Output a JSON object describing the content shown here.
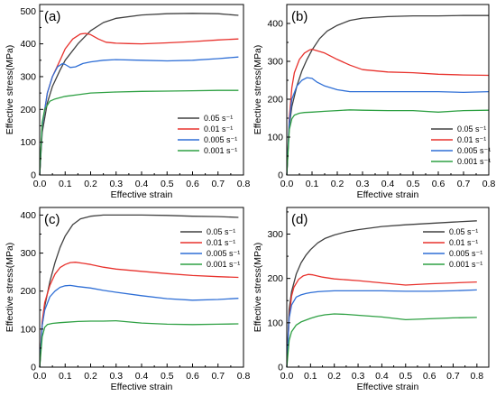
{
  "colors": {
    "s005": "#404040",
    "s001": "#e8322d",
    "s0005": "#2f6fd6",
    "s0001": "#2ea043"
  },
  "chart_data": [
    {
      "type": "line",
      "panel_label": "(a)",
      "xlabel": "Effective strain",
      "ylabel": "Effective stress(MPa)",
      "xlim": [
        0.0,
        0.8
      ],
      "ylim": [
        0,
        520
      ],
      "x_ticks": [
        "0.0",
        "0.1",
        "0.2",
        "0.3",
        "0.4",
        "0.5",
        "0.6",
        "0.7",
        "0.8"
      ],
      "y_ticks": [
        "0",
        "100",
        "200",
        "300",
        "400",
        "500"
      ],
      "legend_position": "bottom-right",
      "series": [
        {
          "name": "0.05 s⁻¹",
          "color_key": "s005",
          "x": [
            0,
            0.01,
            0.03,
            0.05,
            0.08,
            0.1,
            0.15,
            0.2,
            0.25,
            0.3,
            0.4,
            0.5,
            0.6,
            0.7,
            0.78
          ],
          "y": [
            0,
            130,
            220,
            270,
            320,
            350,
            400,
            440,
            465,
            478,
            488,
            492,
            493,
            492,
            487
          ]
        },
        {
          "name": "0.01 s⁻¹",
          "color_key": "s001",
          "x": [
            0,
            0.01,
            0.03,
            0.05,
            0.08,
            0.1,
            0.13,
            0.16,
            0.18,
            0.2,
            0.23,
            0.26,
            0.3,
            0.35,
            0.4,
            0.5,
            0.6,
            0.7,
            0.78
          ],
          "y": [
            0,
            150,
            250,
            300,
            350,
            385,
            415,
            430,
            432,
            428,
            415,
            405,
            402,
            401,
            400,
            403,
            407,
            412,
            415
          ]
        },
        {
          "name": "0.005 s⁻¹",
          "color_key": "s0005",
          "x": [
            0,
            0.01,
            0.03,
            0.05,
            0.07,
            0.09,
            0.1,
            0.12,
            0.14,
            0.17,
            0.2,
            0.25,
            0.3,
            0.4,
            0.5,
            0.6,
            0.7,
            0.78
          ],
          "y": [
            0,
            150,
            250,
            300,
            330,
            340,
            337,
            328,
            330,
            340,
            345,
            350,
            352,
            350,
            348,
            350,
            355,
            360
          ]
        },
        {
          "name": "0.001 s⁻¹",
          "color_key": "s0001",
          "x": [
            0,
            0.01,
            0.02,
            0.04,
            0.06,
            0.08,
            0.1,
            0.15,
            0.2,
            0.3,
            0.4,
            0.5,
            0.6,
            0.7,
            0.78
          ],
          "y": [
            0,
            160,
            200,
            225,
            232,
            236,
            240,
            245,
            250,
            253,
            255,
            256,
            257,
            258,
            258
          ]
        }
      ]
    },
    {
      "type": "line",
      "panel_label": "(b)",
      "xlabel": "Effective strain",
      "ylabel": "Effective stress(MPa)",
      "xlim": [
        0.0,
        0.8
      ],
      "ylim": [
        0,
        450
      ],
      "x_ticks": [
        "0.0",
        "0.1",
        "0.2",
        "0.3",
        "0.4",
        "0.5",
        "0.6",
        "0.7",
        "0.8"
      ],
      "y_ticks": [
        "0",
        "100",
        "200",
        "300",
        "400"
      ],
      "legend_position": "bottom-right",
      "series": [
        {
          "name": "0.05 s⁻¹",
          "color_key": "s005",
          "x": [
            0,
            0.01,
            0.02,
            0.04,
            0.06,
            0.08,
            0.1,
            0.13,
            0.16,
            0.2,
            0.25,
            0.3,
            0.4,
            0.5,
            0.6,
            0.7,
            0.8
          ],
          "y": [
            0,
            130,
            180,
            235,
            275,
            305,
            330,
            360,
            380,
            395,
            408,
            414,
            418,
            420,
            420,
            421,
            421
          ]
        },
        {
          "name": "0.01 s⁻¹",
          "color_key": "s001",
          "x": [
            0,
            0.01,
            0.02,
            0.03,
            0.05,
            0.07,
            0.09,
            0.1,
            0.12,
            0.15,
            0.2,
            0.25,
            0.3,
            0.4,
            0.5,
            0.6,
            0.7,
            0.8
          ],
          "y": [
            0,
            150,
            230,
            270,
            305,
            322,
            330,
            332,
            328,
            322,
            305,
            290,
            278,
            272,
            270,
            266,
            264,
            263
          ]
        },
        {
          "name": "0.005 s⁻¹",
          "color_key": "s0005",
          "x": [
            0,
            0.01,
            0.02,
            0.04,
            0.06,
            0.08,
            0.1,
            0.12,
            0.15,
            0.2,
            0.25,
            0.3,
            0.4,
            0.5,
            0.6,
            0.7,
            0.8
          ],
          "y": [
            0,
            140,
            200,
            235,
            250,
            257,
            255,
            245,
            235,
            225,
            220,
            220,
            220,
            220,
            220,
            218,
            220
          ]
        },
        {
          "name": "0.001 s⁻¹",
          "color_key": "s0001",
          "x": [
            0,
            0.01,
            0.02,
            0.03,
            0.05,
            0.07,
            0.1,
            0.15,
            0.2,
            0.25,
            0.3,
            0.4,
            0.5,
            0.6,
            0.7,
            0.8
          ],
          "y": [
            0,
            120,
            148,
            158,
            163,
            165,
            166,
            168,
            170,
            172,
            171,
            170,
            170,
            166,
            170,
            171
          ]
        }
      ]
    },
    {
      "type": "line",
      "panel_label": "(c)",
      "xlabel": "Effective strain",
      "ylabel": "Effective stress(MPa)",
      "xlim": [
        0.0,
        0.8
      ],
      "ylim": [
        0,
        420
      ],
      "x_ticks": [
        "0.0",
        "0.1",
        "0.2",
        "0.3",
        "0.4",
        "0.5",
        "0.6",
        "0.7",
        "0.8"
      ],
      "y_ticks": [
        "0",
        "100",
        "200",
        "300",
        "400"
      ],
      "legend_position": "bottom-right",
      "series": [
        {
          "name": "0.05 s⁻¹",
          "color_key": "s005",
          "x": [
            0,
            0.01,
            0.02,
            0.04,
            0.06,
            0.08,
            0.1,
            0.13,
            0.16,
            0.2,
            0.25,
            0.3,
            0.4,
            0.5,
            0.6,
            0.7,
            0.78
          ],
          "y": [
            0,
            110,
            160,
            225,
            275,
            315,
            345,
            375,
            390,
            397,
            400,
            400,
            400,
            399,
            397,
            396,
            394
          ]
        },
        {
          "name": "0.01 s⁻¹",
          "color_key": "s001",
          "x": [
            0,
            0.01,
            0.02,
            0.04,
            0.06,
            0.08,
            0.1,
            0.12,
            0.14,
            0.17,
            0.2,
            0.25,
            0.3,
            0.4,
            0.5,
            0.6,
            0.7,
            0.78
          ],
          "y": [
            0,
            120,
            170,
            215,
            245,
            262,
            270,
            275,
            276,
            273,
            270,
            263,
            258,
            252,
            246,
            241,
            238,
            236
          ]
        },
        {
          "name": "0.005 s⁻¹",
          "color_key": "s0005",
          "x": [
            0,
            0.01,
            0.02,
            0.04,
            0.06,
            0.08,
            0.1,
            0.12,
            0.15,
            0.2,
            0.25,
            0.3,
            0.4,
            0.5,
            0.6,
            0.7,
            0.78
          ],
          "y": [
            0,
            110,
            150,
            185,
            200,
            210,
            214,
            215,
            212,
            208,
            202,
            197,
            188,
            180,
            176,
            178,
            181
          ]
        },
        {
          "name": "0.001 s⁻¹",
          "color_key": "s0001",
          "x": [
            0,
            0.01,
            0.02,
            0.03,
            0.05,
            0.08,
            0.1,
            0.15,
            0.2,
            0.25,
            0.3,
            0.35,
            0.4,
            0.5,
            0.6,
            0.7,
            0.78
          ],
          "y": [
            0,
            80,
            105,
            112,
            115,
            117,
            118,
            120,
            121,
            121,
            122,
            119,
            116,
            113,
            112,
            113,
            114
          ]
        }
      ]
    },
    {
      "type": "line",
      "panel_label": "(d)",
      "xlabel": "Effective strain",
      "ylabel": "Effective stress(MPa)",
      "xlim": [
        0.0,
        0.85
      ],
      "ylim": [
        0,
        360
      ],
      "x_ticks": [
        "0.0",
        "0.1",
        "0.2",
        "0.3",
        "0.4",
        "0.5",
        "0.6",
        "0.7",
        "0.8"
      ],
      "y_ticks": [
        "0",
        "100",
        "200",
        "300"
      ],
      "legend_position": "bottom-right",
      "series": [
        {
          "name": "0.05 s⁻¹",
          "color_key": "s005",
          "x": [
            0,
            0.01,
            0.02,
            0.04,
            0.06,
            0.08,
            0.1,
            0.13,
            0.16,
            0.2,
            0.25,
            0.3,
            0.4,
            0.5,
            0.6,
            0.7,
            0.8
          ],
          "y": [
            0,
            130,
            170,
            210,
            235,
            252,
            265,
            280,
            290,
            298,
            305,
            310,
            317,
            321,
            324,
            327,
            330
          ]
        },
        {
          "name": "0.01 s⁻¹",
          "color_key": "s001",
          "x": [
            0,
            0.01,
            0.02,
            0.03,
            0.05,
            0.07,
            0.09,
            0.11,
            0.15,
            0.2,
            0.3,
            0.4,
            0.5,
            0.6,
            0.7,
            0.8
          ],
          "y": [
            0,
            110,
            160,
            180,
            198,
            206,
            209,
            208,
            203,
            199,
            195,
            190,
            185,
            188,
            190,
            192
          ]
        },
        {
          "name": "0.005 s⁻¹",
          "color_key": "s0005",
          "x": [
            0,
            0.01,
            0.02,
            0.04,
            0.06,
            0.08,
            0.1,
            0.13,
            0.16,
            0.2,
            0.3,
            0.4,
            0.5,
            0.6,
            0.7,
            0.8
          ],
          "y": [
            0,
            110,
            140,
            158,
            163,
            166,
            168,
            170,
            171,
            172,
            172,
            172,
            171,
            171,
            172,
            174
          ]
        },
        {
          "name": "0.001 s⁻¹",
          "color_key": "s0001",
          "x": [
            0,
            0.01,
            0.02,
            0.04,
            0.06,
            0.08,
            0.1,
            0.13,
            0.16,
            0.2,
            0.25,
            0.3,
            0.4,
            0.5,
            0.6,
            0.7,
            0.8
          ],
          "y": [
            0,
            60,
            80,
            95,
            102,
            106,
            110,
            115,
            118,
            120,
            119,
            117,
            113,
            107,
            109,
            111,
            112
          ]
        }
      ]
    }
  ]
}
